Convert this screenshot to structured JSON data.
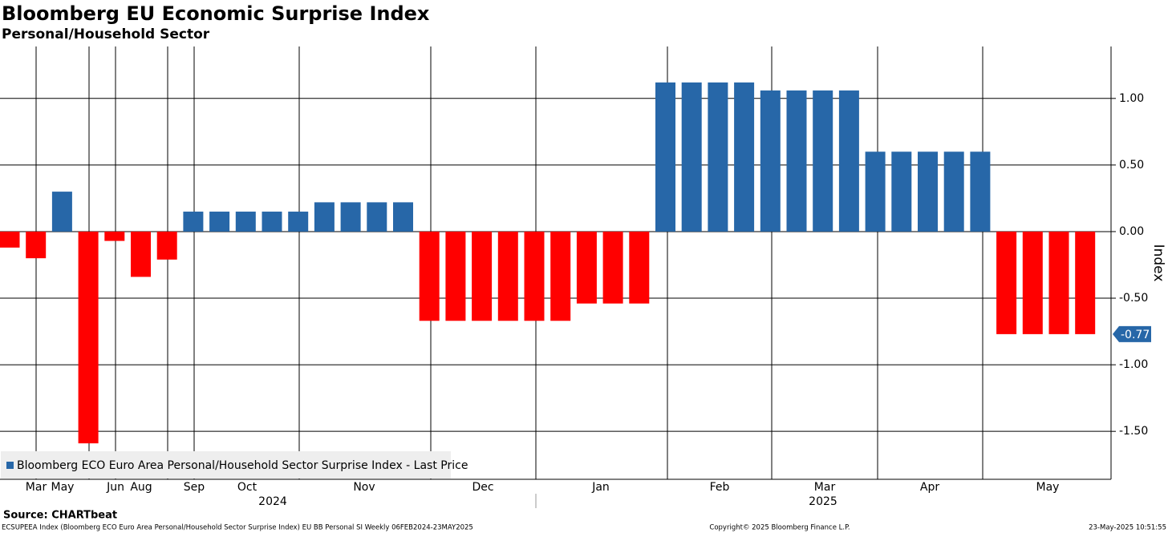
{
  "chart_data": {
    "type": "bar",
    "title": "Bloomberg EU Economic Surprise Index",
    "subtitle": "Personal/Household Sector",
    "y_axis_label": "Index",
    "categories": [
      null,
      null,
      null,
      null,
      null,
      null,
      null,
      null,
      null,
      null,
      null,
      null,
      null,
      null,
      null,
      null,
      null,
      null,
      null,
      null,
      null,
      null,
      null,
      null,
      null,
      null,
      null,
      null,
      null,
      null,
      null,
      null,
      null,
      null,
      null,
      null,
      null,
      null,
      null,
      null,
      null,
      null
    ],
    "series": [
      {
        "name": "Bloomberg ECO Euro Area Personal/Household Sector Surprise Index - Last Price",
        "color": "#2767a8",
        "negative_color": "#ff0000",
        "values": [
          -0.12,
          -0.2,
          0.3,
          -1.59,
          -0.07,
          -0.34,
          -0.21,
          0.15,
          0.15,
          0.15,
          0.15,
          0.15,
          0.22,
          0.22,
          0.22,
          0.22,
          -0.67,
          -0.67,
          -0.67,
          -0.67,
          -0.67,
          -0.67,
          -0.54,
          -0.54,
          -0.54,
          1.12,
          1.12,
          1.12,
          1.12,
          1.06,
          1.06,
          1.06,
          1.06,
          0.6,
          0.6,
          0.6,
          0.6,
          0.6,
          -0.77,
          -0.77,
          -0.77,
          -0.77
        ]
      }
    ],
    "last_price_label": "-0.77",
    "ylim": [
      -1.86,
      1.39
    ],
    "yticks": [
      {
        "value": 1,
        "label": "1.00"
      },
      {
        "value": 0.5,
        "label": "0.50"
      },
      {
        "value": 0,
        "label": "0.00"
      },
      {
        "value": -0.5,
        "label": "-0.50"
      },
      {
        "value": -1,
        "label": "-1.00"
      },
      {
        "value": -1.5,
        "label": "-1.50"
      }
    ],
    "x_month_labels": [
      "Mar",
      "May",
      "Jun",
      "Aug",
      "Sep",
      "Oct",
      "Nov",
      "Dec",
      "Jan",
      "Feb",
      "Mar",
      "Apr",
      "May"
    ],
    "x_year_labels": [
      "2024",
      "2025"
    ],
    "grid": true,
    "legend": "lower left"
  },
  "source": "Source: CHARTbeat",
  "footer": {
    "left": "ECSUPEEA Index (Bloomberg ECO Euro Area Personal/Household Sector Surprise Index) EU BB Personal SI  Weekly 06FEB2024-23MAY2025",
    "center": "Copyright© 2025 Bloomberg Finance L.P.",
    "right": "23-May-2025 10:51:55"
  }
}
